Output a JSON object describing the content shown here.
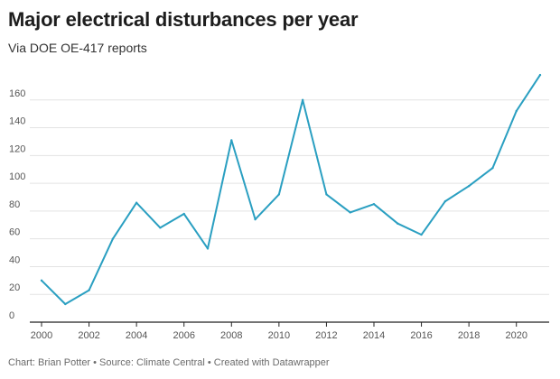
{
  "colors": {
    "line": "#2a9fc1",
    "grid": "#e3e3e3",
    "axis": "#222222"
  },
  "chart_data": {
    "type": "line",
    "title": "Major electrical disturbances per year",
    "subtitle": "Via DOE OE-417 reports",
    "footer": "Chart: Brian Potter • Source: Climate Central • Created with Datawrapper",
    "xlabel": "",
    "ylabel": "",
    "xlim": [
      2000,
      2021
    ],
    "ylim": [
      0,
      180
    ],
    "yticks": [
      0,
      20,
      40,
      60,
      80,
      100,
      120,
      140,
      160
    ],
    "xticks": [
      2000,
      2002,
      2004,
      2006,
      2008,
      2010,
      2012,
      2014,
      2016,
      2018,
      2020
    ],
    "grid": true,
    "series": [
      {
        "name": "Major electrical disturbances",
        "x": [
          2000,
          2001,
          2002,
          2003,
          2004,
          2005,
          2006,
          2007,
          2008,
          2009,
          2010,
          2011,
          2012,
          2013,
          2014,
          2015,
          2016,
          2017,
          2018,
          2019,
          2020,
          2021
        ],
        "values": [
          30,
          13,
          23,
          60,
          86,
          68,
          78,
          53,
          131,
          74,
          92,
          160,
          92,
          79,
          85,
          71,
          63,
          87,
          98,
          111,
          152,
          178
        ]
      }
    ]
  }
}
